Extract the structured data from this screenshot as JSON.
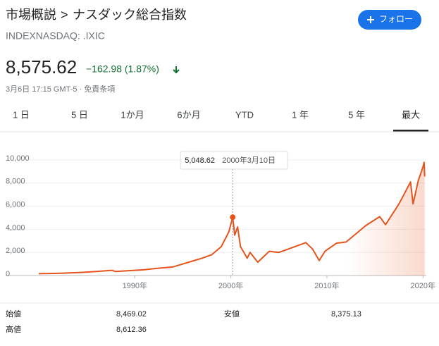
{
  "header": {
    "breadcrumb": "市場概説",
    "separator": ">",
    "title": "ナスダック総合指数",
    "symbol": "INDEXNASDAQ: .IXIC",
    "follow": "フォロー"
  },
  "quote": {
    "price": "8,575.62",
    "change": "−162.98 (1.87%)",
    "timestamp": "3月6日 17:15 GMT-5 · 免責条項"
  },
  "tabs": [
    "1 日",
    "5 日",
    "1か月",
    "6か月",
    "YTD",
    "1 年",
    "5 年",
    "最大"
  ],
  "chart_data": {
    "type": "line",
    "color": "#e5541c",
    "grid": true,
    "x": [
      1980,
      1982,
      1984,
      1986,
      1987.6,
      1988,
      1990,
      1991,
      1992,
      1994,
      1995,
      1996,
      1997,
      1998,
      1999,
      1999.8,
      2000.19,
      2000.4,
      2000.7,
      2001,
      2001.7,
      2002,
      2002.8,
      2003.5,
      2004,
      2005,
      2006,
      2007.8,
      2008.5,
      2009.2,
      2009.8,
      2011,
      2012,
      2013,
      2014,
      2015.5,
      2016.1,
      2016.8,
      2017.5,
      2018.7,
      2018.97,
      2019.5,
      2020,
      2020.12,
      2020.18
    ],
    "values": [
      160,
      190,
      250,
      350,
      450,
      350,
      450,
      500,
      600,
      750,
      1000,
      1250,
      1500,
      1800,
      2500,
      3800,
      5048.62,
      3500,
      4200,
      2500,
      1500,
      2000,
      1150,
      1700,
      2100,
      2000,
      2300,
      2850,
      2300,
      1300,
      2100,
      2800,
      2900,
      3600,
      4300,
      5100,
      4400,
      5300,
      6200,
      8100,
      6200,
      8200,
      9400,
      9800,
      8575.62
    ],
    "xlim": [
      1980,
      2020.2
    ],
    "ylim": [
      0,
      10000
    ],
    "xticks": [
      {
        "value": 1990,
        "label": "1990年"
      },
      {
        "value": 2000,
        "label": "2000年"
      },
      {
        "value": 2010,
        "label": "2010年"
      },
      {
        "value": 2020,
        "label": "2020年"
      }
    ],
    "yticks": [
      0,
      {
        "value": 2000,
        "label": "2,000"
      },
      {
        "value": 4000,
        "label": "4,000"
      },
      {
        "value": 6000,
        "label": "6,000"
      },
      {
        "value": 8000,
        "label": "8,000"
      },
      {
        "value": 10000,
        "label": "10,000"
      }
    ],
    "tooltip": {
      "index": 16,
      "value": 5048.62,
      "label": "5,048.62",
      "date": "2000年3月10日"
    }
  },
  "stats": [
    {
      "name": "始値",
      "value": "8,469.02"
    },
    {
      "name": "安値",
      "value": "8,375.13"
    },
    {
      "name": "高値",
      "value": "8,612.36"
    }
  ]
}
